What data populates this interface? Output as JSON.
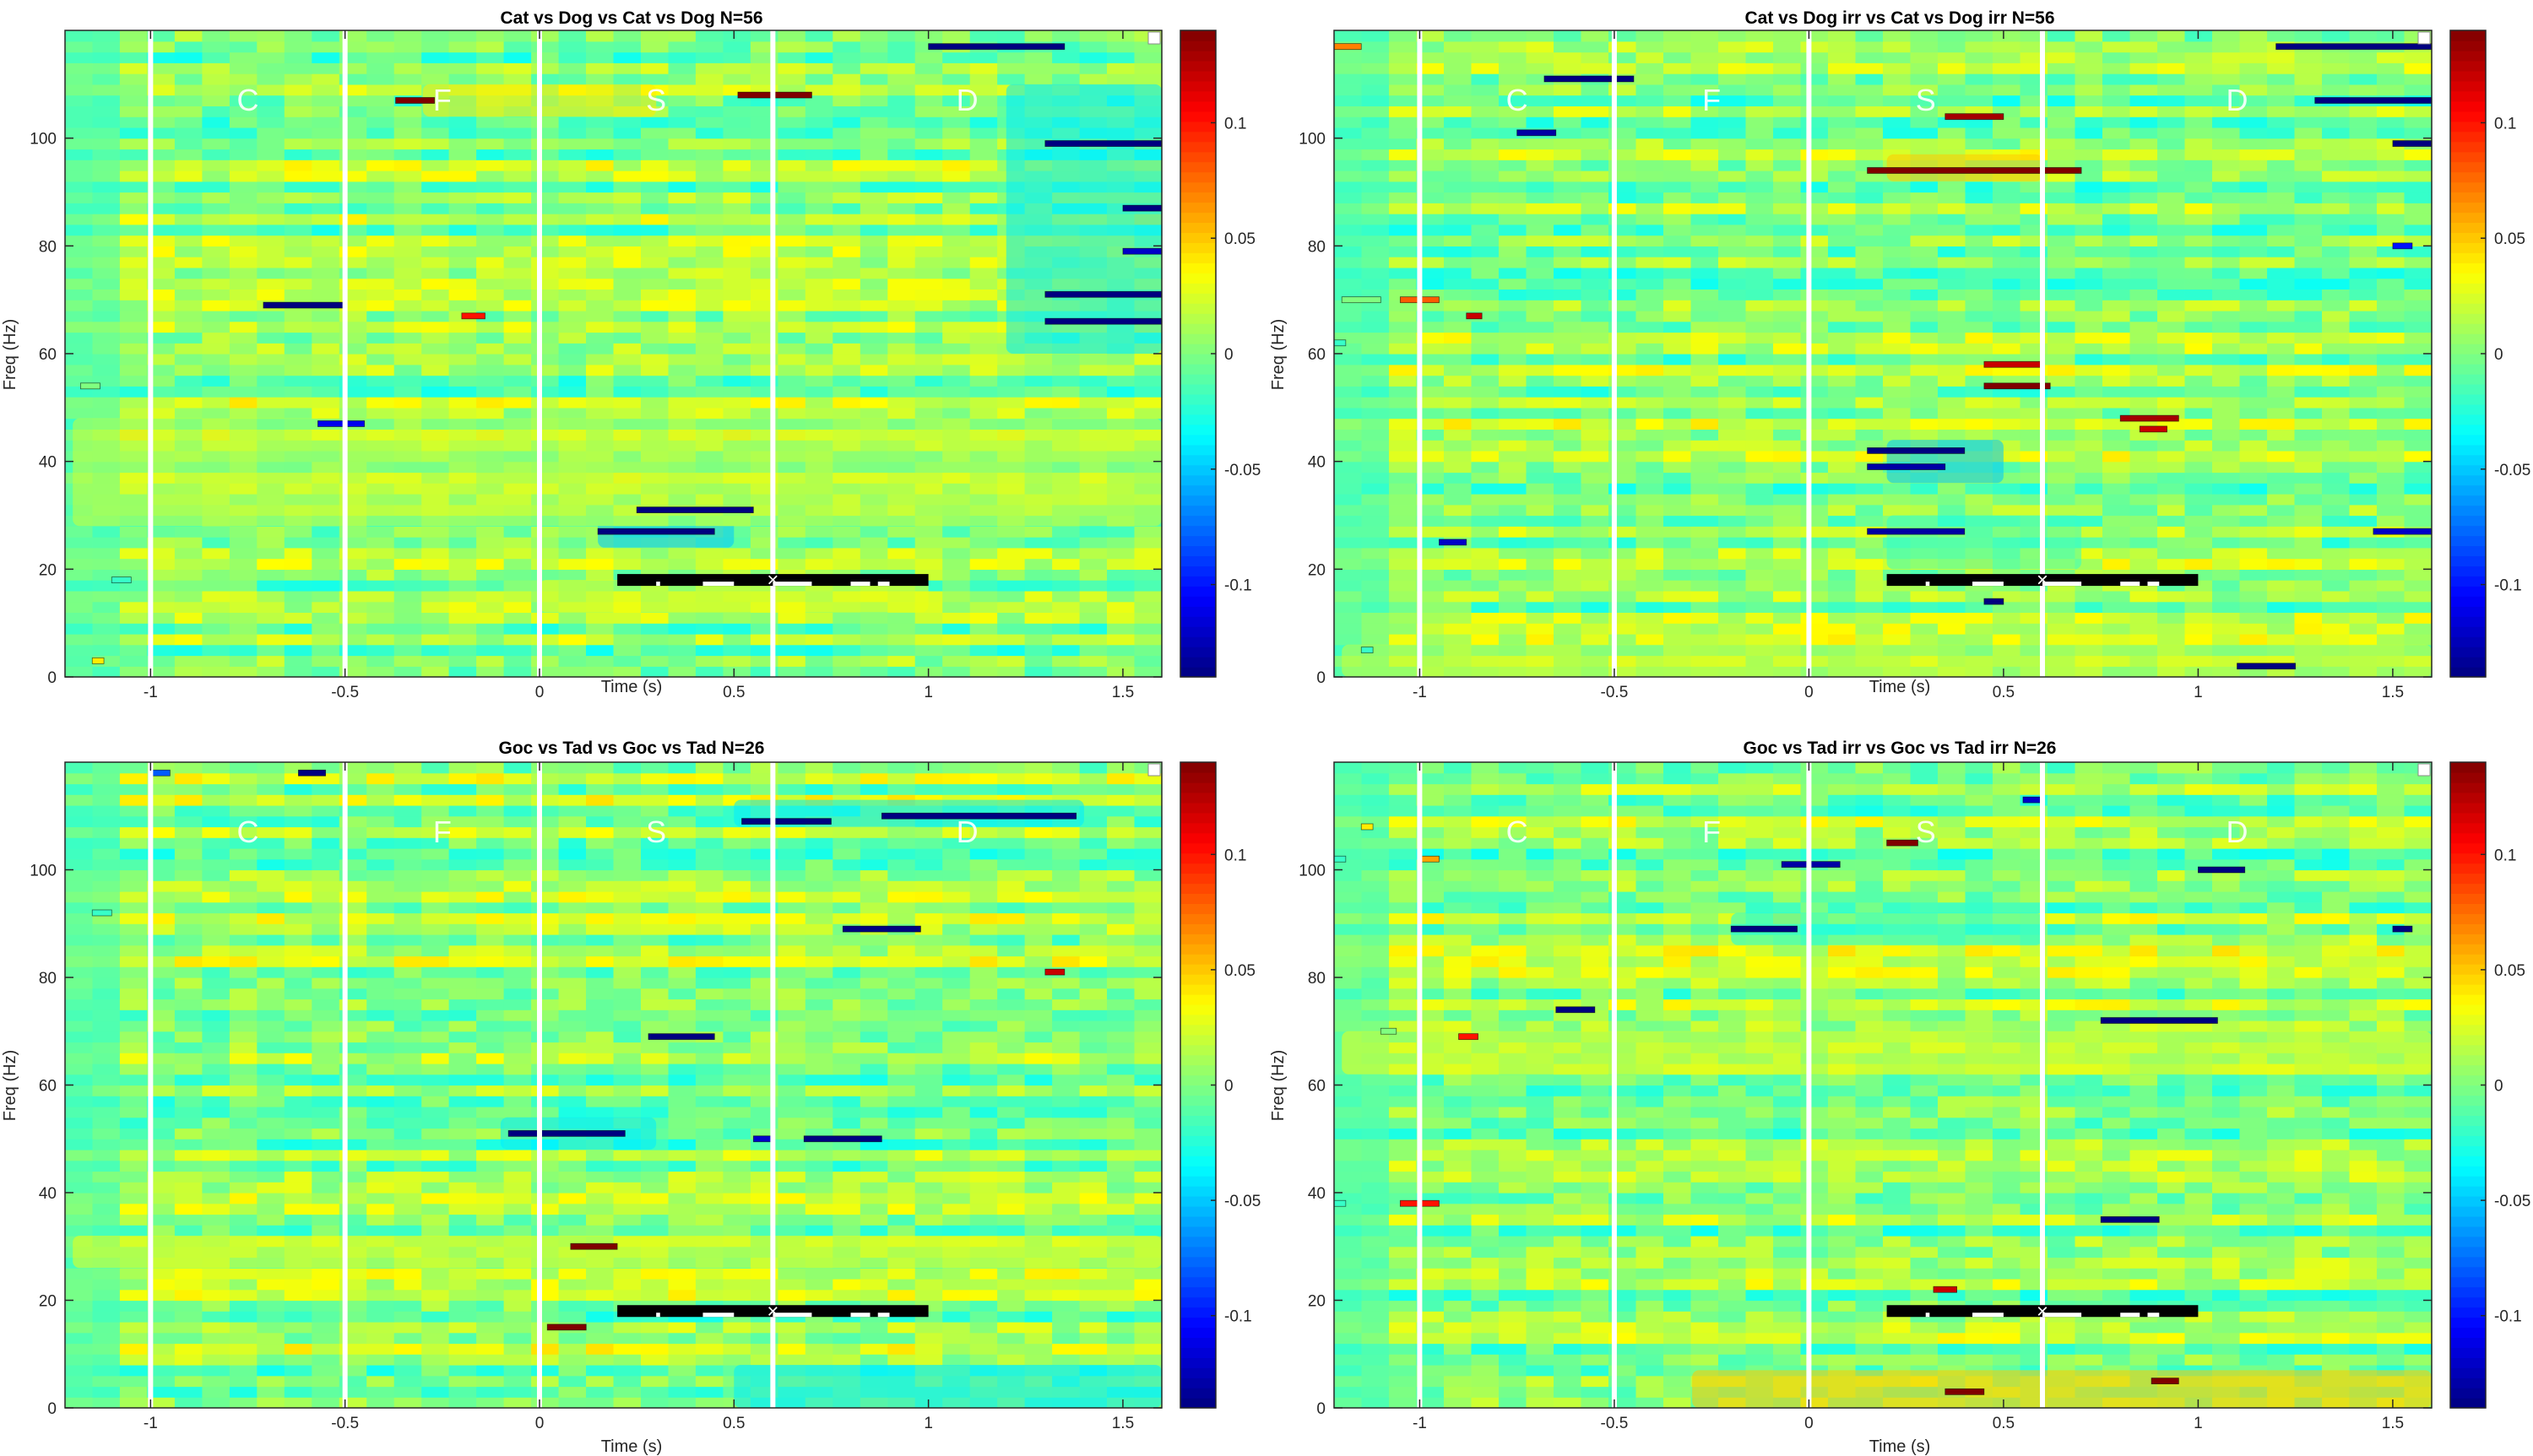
{
  "figure": {
    "background": "#ffffff"
  },
  "chart_data": [
    {
      "type": "heatmap",
      "title": "Cat vs Dog vs Cat vs Dog N=56",
      "xlabel": "Time (s)",
      "ylabel": "Freq (Hz)",
      "xlim": [
        -1.22,
        1.6
      ],
      "ylim": [
        0,
        120
      ],
      "xticks": [
        -1,
        -0.5,
        0,
        0.5,
        1,
        1.5
      ],
      "xtick_labels": [
        "-1",
        "-0.5",
        "0",
        "0.5",
        "1",
        "1.5"
      ],
      "yticks": [
        0,
        20,
        40,
        60,
        80,
        100
      ],
      "ytick_labels": [
        "0",
        "20",
        "40",
        "60",
        "80",
        "100"
      ],
      "colorbar": {
        "clim": [
          -0.14,
          0.14
        ],
        "ticks": [
          -0.1,
          -0.05,
          0,
          0.05,
          0.1
        ],
        "tick_labels": [
          "-0.1",
          "-0.05",
          "0",
          "0.05",
          "0.1"
        ],
        "colormap": "jet"
      },
      "event_lines": [
        -1,
        -0.5,
        0,
        0.6
      ],
      "phase_labels": [
        {
          "text": "C",
          "x": -0.75
        },
        {
          "text": "F",
          "x": -0.25
        },
        {
          "text": "S",
          "x": 0.3
        },
        {
          "text": "D",
          "x": 1.1
        }
      ],
      "phase_label_freq": 107,
      "significance_bar": {
        "freq": 18,
        "x": [
          0.2,
          1.0
        ],
        "marker_x": 0.6
      },
      "blobs": [
        {
          "t": [
            0.15,
            0.5
          ],
          "f": [
            24,
            36
          ],
          "v": -0.05
        },
        {
          "t": [
            -1.2,
            1.6
          ],
          "f": [
            28,
            48
          ],
          "v": 0.02
        },
        {
          "t": [
            -0.3,
            0.3
          ],
          "f": [
            104,
            110
          ],
          "v": 0.04
        },
        {
          "t": [
            1.2,
            1.6
          ],
          "f": [
            60,
            110
          ],
          "v": -0.04
        },
        {
          "t": [
            0.0,
            1.0
          ],
          "f": [
            12,
            18
          ],
          "v": 0.03
        }
      ],
      "streaks": [
        {
          "t": [
            0.25,
            0.55
          ],
          "f": 31,
          "v": -0.14
        },
        {
          "t": [
            0.15,
            0.45
          ],
          "f": 27,
          "v": -0.14
        },
        {
          "t": [
            -0.71,
            -0.5
          ],
          "f": 69,
          "v": -0.14
        },
        {
          "t": [
            -0.57,
            -0.45
          ],
          "f": 47,
          "v": -0.11
        },
        {
          "t": [
            -0.37,
            -0.27
          ],
          "f": 107,
          "v": 0.14
        },
        {
          "t": [
            -0.2,
            -0.14
          ],
          "f": 67,
          "v": 0.1
        },
        {
          "t": [
            0.51,
            0.7
          ],
          "f": 108,
          "v": 0.14
        },
        {
          "t": [
            1.0,
            1.35
          ],
          "f": 117,
          "v": -0.14
        },
        {
          "t": [
            1.3,
            1.6
          ],
          "f": 99,
          "v": -0.14
        },
        {
          "t": [
            1.5,
            1.6
          ],
          "f": 87,
          "v": -0.14
        },
        {
          "t": [
            1.5,
            1.6
          ],
          "f": 79,
          "v": -0.12
        },
        {
          "t": [
            1.3,
            1.6
          ],
          "f": 71,
          "v": -0.14
        },
        {
          "t": [
            1.3,
            1.6
          ],
          "f": 66,
          "v": -0.14
        },
        {
          "t": [
            -1.18,
            -1.13
          ],
          "f": 54,
          "v": 0.0
        },
        {
          "t": [
            -1.15,
            -1.12
          ],
          "f": 3,
          "v": 0.04
        },
        {
          "t": [
            -1.1,
            -1.05
          ],
          "f": 18,
          "v": -0.02
        }
      ]
    },
    {
      "type": "heatmap",
      "title": "Cat vs Dog irr vs Cat vs Dog irr N=56",
      "xlabel": "Time (s)",
      "ylabel": "Freq (Hz)",
      "xlim": [
        -1.22,
        1.6
      ],
      "ylim": [
        0,
        120
      ],
      "xticks": [
        -1,
        -0.5,
        0,
        0.5,
        1,
        1.5
      ],
      "xtick_labels": [
        "-1",
        "-0.5",
        "0",
        "0.5",
        "1",
        "1.5"
      ],
      "yticks": [
        0,
        20,
        40,
        60,
        80,
        100
      ],
      "ytick_labels": [
        "0",
        "20",
        "40",
        "60",
        "80",
        "100"
      ],
      "colorbar": {
        "clim": [
          -0.14,
          0.14
        ],
        "ticks": [
          -0.1,
          -0.05,
          0,
          0.05,
          0.1
        ],
        "tick_labels": [
          "-0.1",
          "-0.05",
          "0",
          "0.05",
          "0.1"
        ],
        "colormap": "jet"
      },
      "event_lines": [
        -1,
        -0.5,
        0,
        0.6
      ],
      "phase_labels": [
        {
          "text": "C",
          "x": -0.75
        },
        {
          "text": "F",
          "x": -0.25
        },
        {
          "text": "S",
          "x": 0.3
        },
        {
          "text": "D",
          "x": 1.1
        }
      ],
      "phase_label_freq": 107,
      "significance_bar": {
        "freq": 18,
        "x": [
          0.2,
          1.0
        ],
        "marker_x": 0.6
      },
      "blobs": [
        {
          "t": [
            0.2,
            0.5
          ],
          "f": [
            36,
            44
          ],
          "v": -0.05
        },
        {
          "t": [
            0.2,
            0.6
          ],
          "f": [
            92,
            97
          ],
          "v": 0.05
        },
        {
          "t": [
            0.2,
            0.7
          ],
          "f": [
            20,
            30
          ],
          "v": -0.02
        },
        {
          "t": [
            -1.2,
            1.6
          ],
          "f": [
            0,
            6
          ],
          "v": 0.02
        }
      ],
      "streaks": [
        {
          "t": [
            -0.68,
            -0.45
          ],
          "f": 111,
          "v": -0.14
        },
        {
          "t": [
            -0.75,
            -0.65
          ],
          "f": 101,
          "v": -0.13
        },
        {
          "t": [
            0.15,
            0.7
          ],
          "f": 94,
          "v": 0.14
        },
        {
          "t": [
            0.15,
            0.4
          ],
          "f": 42,
          "v": -0.14
        },
        {
          "t": [
            0.15,
            0.35
          ],
          "f": 39,
          "v": -0.13
        },
        {
          "t": [
            0.15,
            0.4
          ],
          "f": 27,
          "v": -0.13
        },
        {
          "t": [
            -0.95,
            -0.88
          ],
          "f": 25,
          "v": -0.12
        },
        {
          "t": [
            0.45,
            0.5
          ],
          "f": 14,
          "v": -0.14
        },
        {
          "t": [
            0.35,
            0.5
          ],
          "f": 104,
          "v": 0.13
        },
        {
          "t": [
            0.45,
            0.6
          ],
          "f": 58,
          "v": 0.12
        },
        {
          "t": [
            0.45,
            0.62
          ],
          "f": 54,
          "v": 0.14
        },
        {
          "t": [
            0.8,
            0.95
          ],
          "f": 48,
          "v": 0.13
        },
        {
          "t": [
            0.85,
            0.92
          ],
          "f": 46,
          "v": 0.12
        },
        {
          "t": [
            1.1,
            1.25
          ],
          "f": 2,
          "v": -0.14
        },
        {
          "t": [
            1.2,
            1.6
          ],
          "f": 117,
          "v": -0.14
        },
        {
          "t": [
            1.3,
            1.6
          ],
          "f": 107,
          "v": -0.14
        },
        {
          "t": [
            1.5,
            1.6
          ],
          "f": 99,
          "v": -0.14
        },
        {
          "t": [
            1.5,
            1.55
          ],
          "f": 80,
          "v": -0.1
        },
        {
          "t": [
            1.45,
            1.6
          ],
          "f": 27,
          "v": -0.12
        },
        {
          "t": [
            -1.2,
            -1.1
          ],
          "f": 70,
          "v": 0.0
        },
        {
          "t": [
            -1.05,
            -0.95
          ],
          "f": 70,
          "v": 0.08
        },
        {
          "t": [
            -0.88,
            -0.84
          ],
          "f": 67,
          "v": 0.12
        },
        {
          "t": [
            -1.22,
            -1.15
          ],
          "f": 117,
          "v": 0.07
        },
        {
          "t": [
            -1.22,
            -1.19
          ],
          "f": 62,
          "v": -0.02
        },
        {
          "t": [
            -1.15,
            -1.12
          ],
          "f": 5,
          "v": -0.02
        }
      ]
    },
    {
      "type": "heatmap",
      "title": "Goc vs Tad vs Goc vs Tad N=26",
      "xlabel": "Time (s)",
      "ylabel": "Freq (Hz)",
      "xlim": [
        -1.22,
        1.6
      ],
      "ylim": [
        0,
        120
      ],
      "xticks": [
        -1,
        -0.5,
        0,
        0.5,
        1,
        1.5
      ],
      "xtick_labels": [
        "-1",
        "-0.5",
        "0",
        "0.5",
        "1",
        "1.5"
      ],
      "yticks": [
        0,
        20,
        40,
        60,
        80,
        100
      ],
      "ytick_labels": [
        "0",
        "20",
        "40",
        "60",
        "80",
        "100"
      ],
      "colorbar": {
        "clim": [
          -0.14,
          0.14
        ],
        "ticks": [
          -0.1,
          -0.05,
          0,
          0.05,
          0.1
        ],
        "tick_labels": [
          "-0.1",
          "-0.05",
          "0",
          "0.05",
          "0.1"
        ],
        "colormap": "jet"
      },
      "event_lines": [
        -1,
        -0.5,
        0,
        0.6
      ],
      "phase_labels": [
        {
          "text": "C",
          "x": -0.75
        },
        {
          "text": "F",
          "x": -0.25
        },
        {
          "text": "S",
          "x": 0.3
        },
        {
          "text": "D",
          "x": 1.1
        }
      ],
      "phase_label_freq": 107,
      "significance_bar": {
        "freq": 18,
        "x": [
          0.2,
          1.0
        ],
        "marker_x": 0.6
      },
      "blobs": [
        {
          "t": [
            0.5,
            1.6
          ],
          "f": [
            0,
            8
          ],
          "v": -0.04
        },
        {
          "t": [
            0.5,
            1.4
          ],
          "f": [
            108,
            113
          ],
          "v": -0.04
        },
        {
          "t": [
            -0.1,
            0.3
          ],
          "f": [
            48,
            54
          ],
          "v": -0.04
        },
        {
          "t": [
            -1.2,
            1.6
          ],
          "f": [
            26,
            32
          ],
          "v": 0.03
        }
      ],
      "streaks": [
        {
          "t": [
            -0.08,
            0.22
          ],
          "f": 51,
          "v": -0.14
        },
        {
          "t": [
            0.68,
            0.88
          ],
          "f": 50,
          "v": -0.14
        },
        {
          "t": [
            0.55,
            0.6
          ],
          "f": 50,
          "v": -0.12
        },
        {
          "t": [
            0.28,
            0.45
          ],
          "f": 69,
          "v": -0.14
        },
        {
          "t": [
            0.78,
            0.98
          ],
          "f": 89,
          "v": -0.14
        },
        {
          "t": [
            0.52,
            0.75
          ],
          "f": 109,
          "v": -0.14
        },
        {
          "t": [
            0.88,
            1.38
          ],
          "f": 110,
          "v": -0.14
        },
        {
          "t": [
            -0.62,
            -0.55
          ],
          "f": 118,
          "v": -0.14
        },
        {
          "t": [
            -1.0,
            -0.95
          ],
          "f": 118,
          "v": -0.08
        },
        {
          "t": [
            0.08,
            0.2
          ],
          "f": 30,
          "v": 0.14
        },
        {
          "t": [
            0.02,
            0.12
          ],
          "f": 15,
          "v": 0.14
        },
        {
          "t": [
            1.3,
            1.35
          ],
          "f": 81,
          "v": 0.12
        },
        {
          "t": [
            -1.15,
            -1.1
          ],
          "f": 92,
          "v": -0.02
        }
      ]
    },
    {
      "type": "heatmap",
      "title": "Goc vs Tad irr vs Goc vs Tad irr N=26",
      "xlabel": "Time (s)",
      "ylabel": "Freq (Hz)",
      "xlim": [
        -1.22,
        1.6
      ],
      "ylim": [
        0,
        120
      ],
      "xticks": [
        -1,
        -0.5,
        0,
        0.5,
        1,
        1.5
      ],
      "xtick_labels": [
        "-1",
        "-0.5",
        "0",
        "0.5",
        "1",
        "1.5"
      ],
      "yticks": [
        0,
        20,
        40,
        60,
        80,
        100
      ],
      "ytick_labels": [
        "0",
        "20",
        "40",
        "60",
        "80",
        "100"
      ],
      "colorbar": {
        "clim": [
          -0.14,
          0.14
        ],
        "ticks": [
          -0.1,
          -0.05,
          0,
          0.05,
          0.1
        ],
        "tick_labels": [
          "-0.1",
          "-0.05",
          "0",
          "0.05",
          "0.1"
        ],
        "colormap": "jet"
      },
      "event_lines": [
        -1,
        -0.5,
        0,
        0.6
      ],
      "phase_labels": [
        {
          "text": "C",
          "x": -0.75
        },
        {
          "text": "F",
          "x": -0.25
        },
        {
          "text": "S",
          "x": 0.3
        },
        {
          "text": "D",
          "x": 1.1
        }
      ],
      "phase_label_freq": 107,
      "significance_bar": {
        "freq": 18,
        "x": [
          0.2,
          1.0
        ],
        "marker_x": 0.6
      },
      "blobs": [
        {
          "t": [
            -0.3,
            1.6
          ],
          "f": [
            0,
            7
          ],
          "v": 0.05
        },
        {
          "t": [
            -0.2,
            0.6
          ],
          "f": [
            86,
            92
          ],
          "v": -0.03
        },
        {
          "t": [
            -1.2,
            1.6
          ],
          "f": [
            62,
            70
          ],
          "v": 0.03
        }
      ],
      "streaks": [
        {
          "t": [
            -0.2,
            -0.03
          ],
          "f": 89,
          "v": -0.14
        },
        {
          "t": [
            -0.07,
            0.08
          ],
          "f": 101,
          "v": -0.13
        },
        {
          "t": [
            0.2,
            0.28
          ],
          "f": 105,
          "v": 0.14
        },
        {
          "t": [
            0.55,
            0.6
          ],
          "f": 113,
          "v": -0.12
        },
        {
          "t": [
            0.75,
            1.05
          ],
          "f": 72,
          "v": -0.14
        },
        {
          "t": [
            0.75,
            0.9
          ],
          "f": 35,
          "v": -0.14
        },
        {
          "t": [
            1.0,
            1.12
          ],
          "f": 100,
          "v": -0.14
        },
        {
          "t": [
            -0.65,
            -0.55
          ],
          "f": 74,
          "v": -0.14
        },
        {
          "t": [
            1.5,
            1.55
          ],
          "f": 89,
          "v": -0.14
        },
        {
          "t": [
            0.35,
            0.45
          ],
          "f": 3,
          "v": 0.14
        },
        {
          "t": [
            0.88,
            0.95
          ],
          "f": 5,
          "v": 0.14
        },
        {
          "t": [
            0.32,
            0.38
          ],
          "f": 22,
          "v": 0.12
        },
        {
          "t": [
            -0.9,
            -0.85
          ],
          "f": 69,
          "v": 0.1
        },
        {
          "t": [
            -1.05,
            -0.95
          ],
          "f": 38,
          "v": 0.1
        },
        {
          "t": [
            -1.0,
            -0.95
          ],
          "f": 102,
          "v": 0.06
        },
        {
          "t": [
            -1.22,
            -1.19
          ],
          "f": 102,
          "v": -0.02
        },
        {
          "t": [
            -1.22,
            -1.19
          ],
          "f": 38,
          "v": -0.02
        },
        {
          "t": [
            -1.15,
            -1.12
          ],
          "f": 108,
          "v": 0.04
        },
        {
          "t": [
            -1.1,
            -1.06
          ],
          "f": 70,
          "v": 0.0
        }
      ]
    }
  ]
}
